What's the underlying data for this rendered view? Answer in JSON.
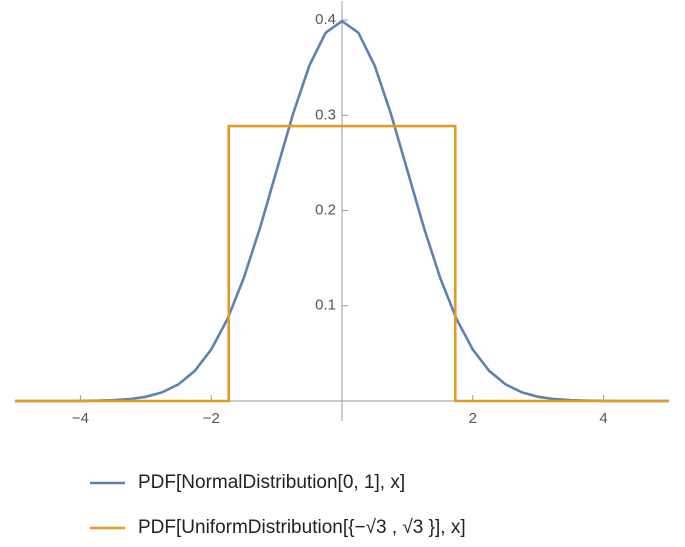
{
  "chart_data": {
    "type": "line",
    "xlim": [
      -5,
      5
    ],
    "ylim": [
      0,
      0.42
    ],
    "xticks": [
      {
        "value": -4,
        "label": "−4"
      },
      {
        "value": -2,
        "label": "−2"
      },
      {
        "value": 2,
        "label": "2"
      },
      {
        "value": 4,
        "label": "4"
      }
    ],
    "yticks": [
      0.1,
      0.2,
      0.3,
      0.4
    ],
    "series": [
      {
        "name": "PDF[NormalDistribution[0, 1], x]",
        "color": "#5e81b5",
        "x": [
          -5,
          -4.75,
          -4.5,
          -4.25,
          -4,
          -3.75,
          -3.5,
          -3.25,
          -3,
          -2.75,
          -2.5,
          -2.25,
          -2,
          -1.75,
          -1.5,
          -1.25,
          -1,
          -0.75,
          -0.5,
          -0.25,
          0,
          0.25,
          0.5,
          0.75,
          1,
          1.25,
          1.5,
          1.75,
          2,
          2.25,
          2.5,
          2.75,
          3,
          3.25,
          3.5,
          3.75,
          4,
          4.25,
          4.5,
          4.75,
          5
        ],
        "values": [
          0,
          0,
          0,
          0,
          0.0001,
          0.0004,
          0.0009,
          0.002,
          0.0044,
          0.0091,
          0.0175,
          0.0317,
          0.054,
          0.0863,
          0.1295,
          0.1826,
          0.242,
          0.3011,
          0.3521,
          0.3867,
          0.3989,
          0.3867,
          0.3521,
          0.3011,
          0.242,
          0.1826,
          0.1295,
          0.0863,
          0.054,
          0.0317,
          0.0175,
          0.0091,
          0.0044,
          0.002,
          0.0009,
          0.0004,
          0.0001,
          0,
          0,
          0,
          0
        ]
      },
      {
        "name": "PDF[UniformDistribution[{−√3 , √3 }], x]",
        "color": "#e19c24",
        "x": [
          -5,
          -1.732,
          -1.732,
          1.732,
          1.732,
          5
        ],
        "values": [
          0,
          0,
          0.2887,
          0.2887,
          0,
          0
        ]
      }
    ]
  }
}
